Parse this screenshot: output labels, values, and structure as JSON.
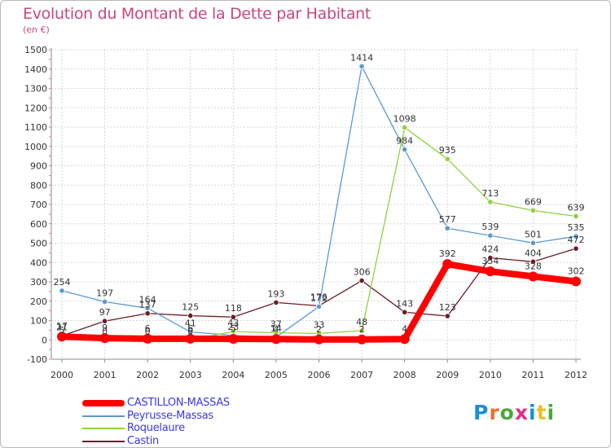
{
  "header": {
    "title": "Evolution du Montant de la Dette par Habitant",
    "subtitle": "(en €)"
  },
  "logo": {
    "text": "Proxiti",
    "colors": [
      "#1a8fd6",
      "#e8732b",
      "#4aa83c",
      "#e02f8a",
      "#1a8fd6",
      "#e8c02b",
      "#4aa83c"
    ]
  },
  "chart_data": {
    "type": "line",
    "title": "Evolution du Montant de la Dette par Habitant",
    "subtitle": "(en €)",
    "xlabel": "",
    "ylabel": "",
    "x": [
      "2000",
      "2001",
      "2002",
      "2003",
      "2004",
      "2005",
      "2006",
      "2007",
      "2008",
      "2009",
      "2010",
      "2011",
      "2012"
    ],
    "ylim": [
      -100,
      1500
    ],
    "yticks": [
      "-100",
      "0",
      "100",
      "200",
      "300",
      "400",
      "500",
      "600",
      "700",
      "800",
      "900",
      "1000",
      "1100",
      "1200",
      "1300",
      "1400",
      "1500"
    ],
    "grid": true,
    "legend_position": "bottom-left",
    "series": [
      {
        "name": "Castin",
        "color": "#6b1c25",
        "values": [
          21,
          97,
          137,
          125,
          118,
          193,
          176,
          306,
          143,
          123,
          424,
          404,
          472
        ],
        "labels": [
          "21",
          "97",
          "137",
          "125",
          "118",
          "193",
          "176",
          "306",
          "143",
          "123",
          "424",
          "404",
          "472"
        ]
      },
      {
        "name": "Peyrusse-Massas",
        "color": "#5a9ad0",
        "values": [
          254,
          197,
          164,
          41,
          23,
          14,
          172,
          1414,
          984,
          577,
          539,
          501,
          535
        ],
        "labels": [
          "254",
          "197",
          "164",
          "41",
          "23",
          "14",
          "172",
          "1414",
          "984",
          "577",
          "539",
          "501",
          "535"
        ]
      },
      {
        "name": "Roquelaure",
        "color": "#90d040",
        "values": [
          5,
          0,
          0,
          0,
          43,
          37,
          33,
          48,
          1098,
          935,
          713,
          669,
          639
        ],
        "labels": [
          "5",
          "0",
          "0",
          "0",
          "43",
          "37",
          "33",
          "48",
          "1098",
          "935",
          "713",
          "669",
          "639"
        ]
      },
      {
        "name": "CASTILLON-MASSAS",
        "color": "#ff0000",
        "values": [
          17,
          9,
          6,
          6,
          5,
          4,
          2,
          2,
          4,
          392,
          354,
          328,
          302
        ],
        "labels": [
          "17",
          "9",
          "6",
          "6",
          "5",
          "4",
          "2",
          "2",
          "4",
          "392",
          "354",
          "328",
          "302"
        ]
      }
    ]
  },
  "legend": {
    "items": [
      {
        "label": "CASTILLON-MASSAS",
        "color": "#ff0000",
        "thickness": 8
      },
      {
        "label": "Peyrusse-Massas",
        "color": "#5a9ad0",
        "thickness": 2
      },
      {
        "label": "Roquelaure",
        "color": "#90d040",
        "thickness": 2
      },
      {
        "label": "Castin",
        "color": "#6b1c25",
        "thickness": 2
      }
    ]
  }
}
